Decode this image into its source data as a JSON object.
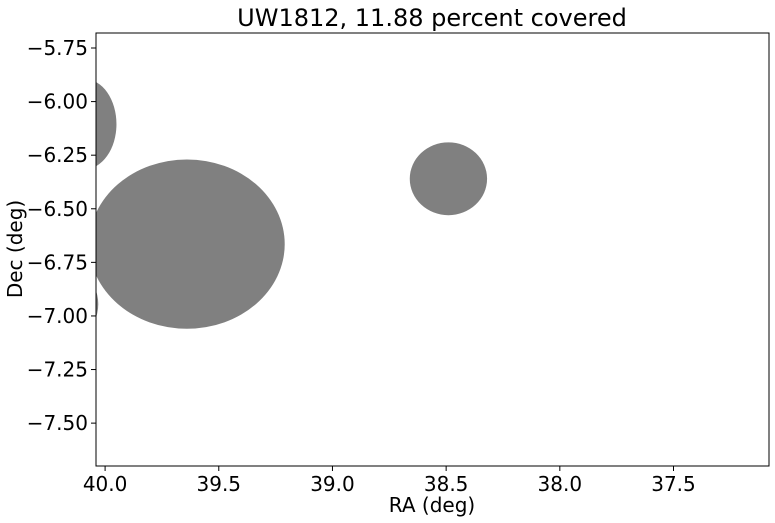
{
  "chart_data": {
    "type": "scatter",
    "title": "UW1812, 11.88 percent covered",
    "xlabel": "RA (deg)",
    "ylabel": "Dec (deg)",
    "xlim": [
      40.04,
      37.08
    ],
    "ylim": [
      -7.7,
      -5.68
    ],
    "x_inverted": true,
    "grid": false,
    "x_ticks": [
      40.0,
      39.5,
      39.0,
      38.5,
      38.0,
      37.5
    ],
    "x_tick_labels": [
      "40.0",
      "39.5",
      "39.0",
      "38.5",
      "38.0",
      "37.5"
    ],
    "y_ticks": [
      -5.75,
      -6.0,
      -6.25,
      -6.5,
      -6.75,
      -7.0,
      -7.25,
      -7.5
    ],
    "y_tick_labels": [
      "−5.75",
      "−6.00",
      "−6.25",
      "−6.50",
      "−6.75",
      "−7.00",
      "−7.25",
      "−7.50"
    ],
    "fill_color": "#808080",
    "circles": [
      {
        "ra": 40.09,
        "dec": -6.105,
        "radius_ra": 0.14,
        "radius_dec": 0.21
      },
      {
        "ra": 39.64,
        "dec": -6.665,
        "radius_ra": 0.43,
        "radius_dec": 0.395
      },
      {
        "ra": 40.27,
        "dec": -6.945,
        "radius_ra": 0.24,
        "radius_dec": 0.22
      },
      {
        "ra": 38.49,
        "dec": -6.36,
        "radius_ra": 0.17,
        "radius_dec": 0.17
      }
    ]
  }
}
